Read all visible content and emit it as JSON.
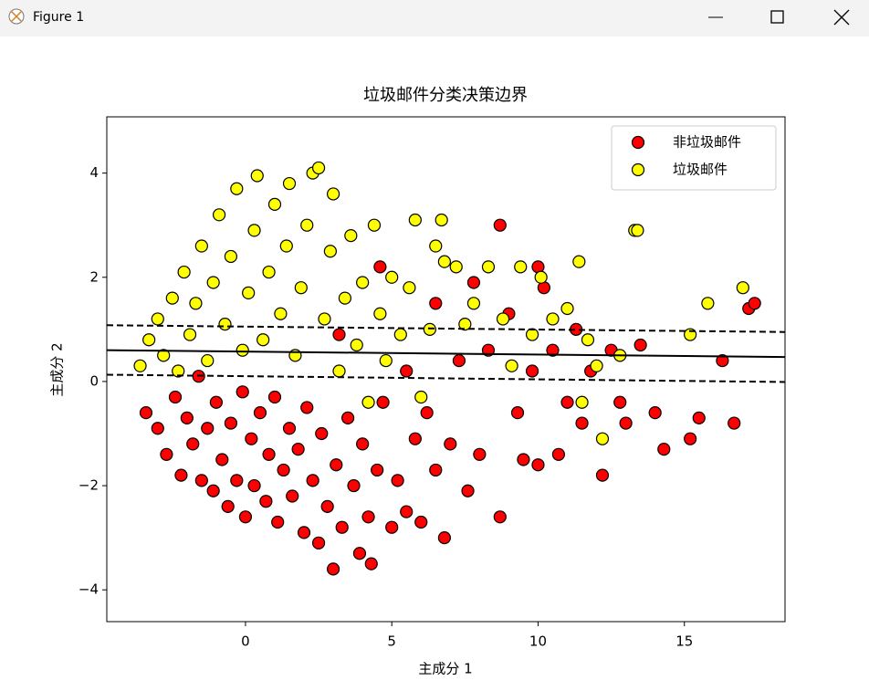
{
  "window": {
    "title": "Figure 1"
  },
  "chart_data": {
    "type": "scatter",
    "title": "垃圾邮件分类决策边界",
    "x_label": "主成分 1",
    "y_label": "主成分 2",
    "xlim": [
      -4.74,
      18.44
    ],
    "ylim": [
      -4.61,
      5.08
    ],
    "xticks": [
      0,
      5,
      10,
      15
    ],
    "yticks": [
      {
        "value": -4,
        "label": "−4"
      },
      {
        "value": -2,
        "label": "−2"
      },
      0,
      2,
      4
    ],
    "grid": false,
    "legend": "upper right",
    "series": [
      {
        "name": "非垃圾邮件",
        "color": "#ff0000",
        "x": [
          -3.4,
          -3,
          -2.7,
          -2.4,
          -2.2,
          -2,
          -1.8,
          -1.6,
          -1.5,
          -1.3,
          -1.1,
          -1,
          -0.8,
          -0.6,
          -0.5,
          -0.3,
          -0.1,
          0,
          0.2,
          0.3,
          0.5,
          0.7,
          0.8,
          1,
          1.1,
          1.3,
          1.5,
          1.6,
          1.8,
          2,
          2.1,
          2.3,
          2.5,
          2.6,
          2.8,
          3,
          3.1,
          3.3,
          3.5,
          3.7,
          3.9,
          4,
          4.2,
          4.3,
          4.5,
          4.7,
          5,
          5.2,
          5.5,
          5.8,
          6,
          6.2,
          6.5,
          6.8,
          7,
          7.3,
          7.6,
          8,
          8.3,
          8.7,
          8.7,
          9,
          9.3,
          9.5,
          9.8,
          10,
          10.2,
          10.5,
          10.7,
          11,
          11.3,
          11.5,
          11.8,
          12.2,
          12.5,
          12.8,
          13,
          13.5,
          14,
          14.3,
          15.2,
          15.5,
          16.3,
          16.7,
          17.2,
          17.4,
          6.5,
          7.8,
          10,
          3.2,
          4.6,
          5.5
        ],
        "y": [
          -0.6,
          -0.9,
          -1.4,
          -0.3,
          -1.8,
          -0.7,
          -1.2,
          0.1,
          -1.9,
          -0.9,
          -2.1,
          -0.4,
          -1.5,
          -2.4,
          -0.8,
          -1.9,
          -0.2,
          -2.6,
          -1.1,
          -2,
          -0.6,
          -2.3,
          -1.4,
          -0.3,
          -2.7,
          -1.7,
          -0.9,
          -2.2,
          -1.3,
          -2.9,
          -0.5,
          -1.9,
          -3.1,
          -1,
          -2.4,
          -3.6,
          -1.6,
          -2.8,
          -0.7,
          -2,
          -3.3,
          -1.2,
          -2.6,
          -3.5,
          -1.7,
          -0.4,
          -2.8,
          -1.9,
          -2.5,
          -1.1,
          -2.7,
          -0.6,
          -1.7,
          -3,
          -1.2,
          0.4,
          -2.1,
          -1.4,
          0.6,
          -2.6,
          3,
          1.3,
          -0.6,
          -1.5,
          0.2,
          -1.6,
          1.8,
          0.6,
          -1.4,
          -0.4,
          1,
          -0.8,
          0.2,
          -1.8,
          0.6,
          -0.4,
          -0.8,
          0.7,
          -0.6,
          -1.3,
          -1.1,
          -0.7,
          0.4,
          -0.8,
          1.4,
          1.5,
          1.5,
          1.9,
          2.2,
          0.9,
          2.2,
          0.2
        ]
      },
      {
        "name": "垃圾邮件",
        "color": "#ffff00",
        "x": [
          -3.6,
          -3.3,
          -3,
          -2.8,
          -2.5,
          -2.3,
          -2.1,
          -1.9,
          -1.7,
          -1.5,
          -1.3,
          -1.1,
          -0.9,
          -0.7,
          -0.5,
          -0.3,
          -0.1,
          0.1,
          0.3,
          0.4,
          0.6,
          0.8,
          1,
          1.2,
          1.4,
          1.5,
          1.7,
          1.9,
          2.1,
          2.3,
          2.5,
          2.7,
          2.9,
          3,
          3.2,
          3.4,
          3.6,
          3.8,
          4,
          4.2,
          4.4,
          4.6,
          4.8,
          5,
          5.3,
          5.6,
          5.8,
          6,
          6.3,
          6.5,
          6.7,
          6.8,
          7.2,
          7.5,
          7.8,
          8.3,
          8.8,
          9.1,
          9.4,
          9.8,
          10.1,
          10.5,
          11,
          11.4,
          11.5,
          11.7,
          12,
          12.2,
          12.8,
          13.3,
          13.4,
          15.2,
          15.8,
          17
        ],
        "y": [
          0.3,
          0.8,
          1.2,
          0.5,
          1.6,
          0.2,
          2.1,
          0.9,
          1.5,
          2.6,
          0.4,
          1.9,
          3.2,
          1.1,
          2.4,
          3.7,
          0.6,
          1.7,
          2.9,
          3.95,
          0.8,
          2.1,
          3.4,
          1.3,
          2.6,
          3.8,
          0.5,
          1.8,
          3,
          4,
          4.1,
          1.2,
          2.5,
          3.6,
          0.2,
          1.6,
          2.8,
          0.7,
          1.9,
          -0.4,
          3,
          1.3,
          0.4,
          2,
          0.9,
          1.8,
          3.1,
          -0.3,
          1,
          2.6,
          3.1,
          2.3,
          2.2,
          1.1,
          1.5,
          2.2,
          1.2,
          0.3,
          2.2,
          0.9,
          2,
          1.2,
          1.4,
          2.3,
          -0.4,
          0.8,
          0.3,
          -1.1,
          0.5,
          2.9,
          2.9,
          0.9,
          1.5,
          1.8
        ]
      }
    ],
    "lines": [
      {
        "style": "solid",
        "x": [
          -4.74,
          18.44
        ],
        "y": [
          0.6,
          0.47
        ]
      },
      {
        "style": "dashed",
        "x": [
          -4.74,
          18.44
        ],
        "y": [
          1.08,
          0.95
        ]
      },
      {
        "style": "dashed",
        "x": [
          -4.74,
          18.44
        ],
        "y": [
          0.13,
          -0.01
        ]
      }
    ]
  }
}
